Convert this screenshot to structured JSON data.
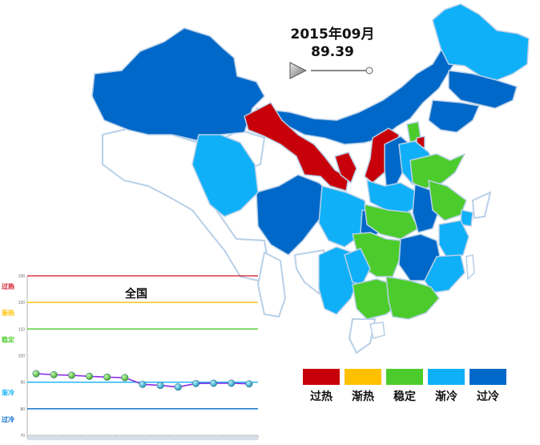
{
  "header": {
    "date": "2015年09月",
    "value": "89.39"
  },
  "colors": {
    "hot": "#c8000a",
    "warm": "#ffc000",
    "stable": "#4ccc2c",
    "cool": "#0fb0f8",
    "cold": "#0068c8"
  },
  "legend": [
    {
      "label": "过热",
      "color": "#c8000a"
    },
    {
      "label": "渐热",
      "color": "#ffc000"
    },
    {
      "label": "稳定",
      "color": "#4ccc2c"
    },
    {
      "label": "渐冷",
      "color": "#0fb0f8"
    },
    {
      "label": "过冷",
      "color": "#0068c8"
    }
  ],
  "chart_data": {
    "type": "line",
    "title": "全国",
    "yticks": [
      70,
      80,
      90,
      100,
      110,
      120,
      130
    ],
    "ylim": [
      70,
      130
    ],
    "zones": [
      {
        "label": "过热",
        "y": 130,
        "color": "#d01020"
      },
      {
        "label": "渐热",
        "y": 120,
        "color": "#ffc000"
      },
      {
        "label": "稳定",
        "y": 110,
        "color": "#4ccc2c"
      },
      {
        "label": "渐冷",
        "y": 90,
        "color": "#0fb0f8"
      },
      {
        "label": "过冷",
        "y": 80,
        "color": "#0068c8"
      }
    ],
    "series": [
      {
        "values": [
          93.2,
          92.8,
          92.6,
          92.2,
          91.9,
          91.7,
          89.2,
          88.8,
          88.2,
          89.5,
          89.6,
          89.6,
          89.39
        ]
      }
    ]
  }
}
